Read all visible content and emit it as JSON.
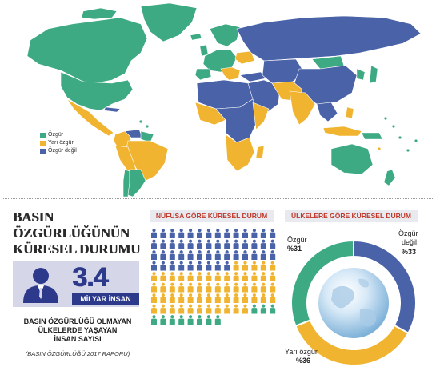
{
  "colors": {
    "free": "#3daa83",
    "partly_free": "#f0b430",
    "not_free": "#4a63a8",
    "person_blue": "#4a63a8",
    "person_yellow": "#f0b430",
    "person_green": "#3daa83",
    "accent_red": "#c0392b",
    "dark_blue": "#2d3a8c",
    "ocean": "#ffffff"
  },
  "map": {
    "legend": [
      {
        "label": "Özgür",
        "color": "#3daa83"
      },
      {
        "label": "Yarı özgür",
        "color": "#f0b430"
      },
      {
        "label": "Özgür değil",
        "color": "#4a63a8"
      }
    ]
  },
  "left_panel": {
    "title_lines": [
      "BASIN",
      "ÖZGÜRLÜĞÜNÜN",
      "KÜRESEL DURUMU"
    ],
    "big_number": "3.4",
    "big_unit": "MİLYAR İNSAN",
    "caption_lines": [
      "BASIN ÖZGÜRLÜĞÜ OLMAYAN",
      "ÜLKELERDE YAŞAYAN",
      "İNSAN SAYISI"
    ],
    "caption_note": "(BASIN ÖZGÜRLÜĞÜ 2017 RAPORU)",
    "person_icon": "person-silhouette-icon"
  },
  "population_section": {
    "label": "NÜFUSA GÖRE KÜRESEL DURUM",
    "icon": "person-icon"
  },
  "country_section": {
    "label": "ÜLKELERE GÖRE KÜRESEL DURUM",
    "center_icon": "globe-icon",
    "labels": {
      "free_name": "Özgür",
      "free_pct": "%31",
      "not_free_name": "Özgür",
      "not_free_name2": "değil",
      "not_free_pct": "%33",
      "partly_name": "Yarı özgür",
      "partly_pct": "%36"
    }
  },
  "chart_data": [
    {
      "type": "pictogram",
      "title": "NÜFUSA GÖRE KÜRESEL DURUM",
      "unit_icon": "person",
      "total_units": 120,
      "series": [
        {
          "name": "Özgür değil",
          "count": 51,
          "color": "#4a63a8"
        },
        {
          "name": "Yarı özgür",
          "count": 58,
          "color": "#f0b430"
        },
        {
          "name": "Özgür",
          "count": 11,
          "color": "#3daa83"
        }
      ]
    },
    {
      "type": "pie",
      "title": "ÜLKELERE GÖRE KÜRESEL DURUM",
      "donut": true,
      "categories": [
        "Özgür değil",
        "Yarı özgür",
        "Özgür"
      ],
      "values": [
        33,
        36,
        31
      ],
      "colors": [
        "#4a63a8",
        "#f0b430",
        "#3daa83"
      ]
    }
  ]
}
